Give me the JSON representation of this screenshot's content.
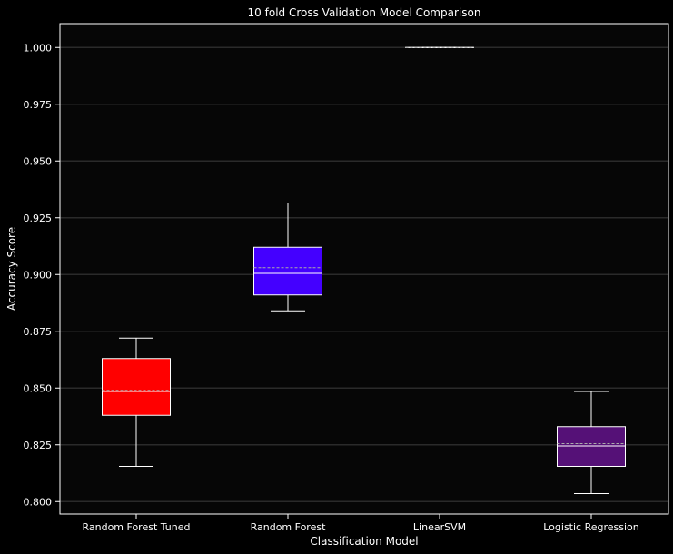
{
  "chart_data": {
    "type": "boxplot",
    "title": "10 fold Cross Validation Model Comparison",
    "xlabel": "Classification Model",
    "ylabel": "Accuracy Score",
    "ylim": [
      0.7945,
      1.0105
    ],
    "yticks": [
      "0.800",
      "0.825",
      "0.850",
      "0.875",
      "0.900",
      "0.925",
      "0.950",
      "0.975",
      "1.000"
    ],
    "ytick_values": [
      0.8,
      0.825,
      0.85,
      0.875,
      0.9,
      0.925,
      0.95,
      0.975,
      1.0
    ],
    "grid": true,
    "show_means": true,
    "categories": [
      "Random Forest Tuned",
      "Random Forest",
      "LinearSVM",
      "Logistic Regression"
    ],
    "boxes": [
      {
        "whisker_low": 0.8155,
        "q1": 0.838,
        "median": 0.8485,
        "mean": 0.849,
        "q3": 0.863,
        "whisker_high": 0.872,
        "color": "#ff0000"
      },
      {
        "whisker_low": 0.884,
        "q1": 0.891,
        "median": 0.9005,
        "mean": 0.903,
        "q3": 0.912,
        "whisker_high": 0.9315,
        "color": "#4400ff"
      },
      {
        "whisker_low": 1.0,
        "q1": 1.0,
        "median": 1.0,
        "mean": 1.0,
        "q3": 1.0,
        "whisker_high": 1.0,
        "color": "#ff0000"
      },
      {
        "whisker_low": 0.8035,
        "q1": 0.8155,
        "median": 0.8245,
        "mean": 0.8255,
        "q3": 0.833,
        "whisker_high": 0.8485,
        "color": "#551177"
      }
    ],
    "colors": {
      "background": "#000000",
      "plot_background": "#060606",
      "grid": "#2a2a2a",
      "foreground": "#ffffff",
      "mean_line": "#aaaaaa"
    }
  }
}
